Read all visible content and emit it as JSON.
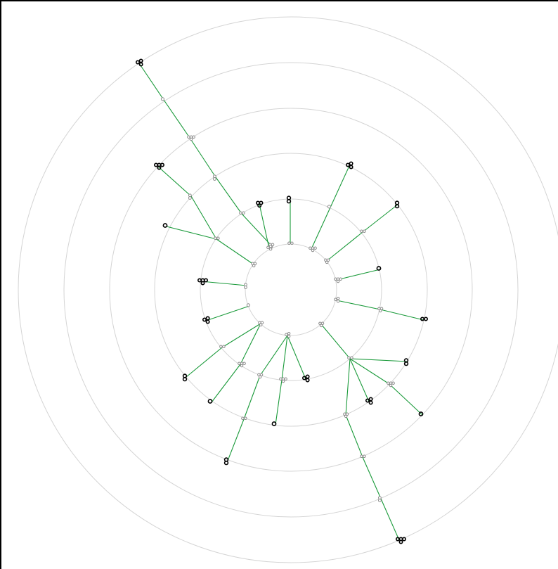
{
  "diagram": {
    "type": "radial-tree",
    "colors": {
      "background": "#ffffff",
      "ring": "#d4d4d4",
      "edge": "#1a9a3a",
      "leaf_node": "#000000",
      "inner_node": "#8a8a8a"
    },
    "ring_count": 6,
    "node_icon": "small-molecule-glyph-icon",
    "leaf_count": 26
  }
}
